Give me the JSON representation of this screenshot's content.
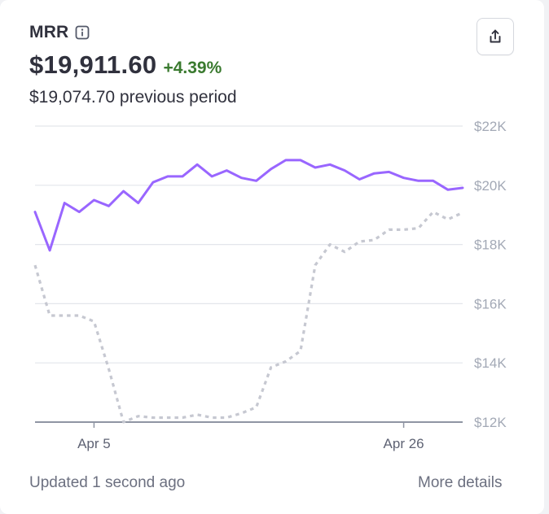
{
  "metric": {
    "title": "MRR",
    "value": "$19,911.60",
    "change": "+4.39%",
    "previous": "$19,074.70 previous period"
  },
  "footer": {
    "updated": "Updated 1 second ago",
    "details_link": "More details"
  },
  "icons": {
    "info": "info-icon",
    "export": "share-export-icon"
  },
  "colors": {
    "current_series": "#9966ff",
    "previous_series": "#c6c8d1",
    "change_positive": "#3a7a2f"
  },
  "chart_data": {
    "type": "line",
    "x_axis": {
      "start": "2024-04-01",
      "end": "2024-04-30",
      "tick_labels": [
        "Apr 5",
        "Apr 26"
      ],
      "tick_dates": [
        "2024-04-05",
        "2024-04-26"
      ]
    },
    "y_axis": {
      "ylim": [
        12000,
        22000
      ],
      "ticks": [
        12000,
        14000,
        16000,
        18000,
        20000,
        22000
      ],
      "tick_labels": [
        "$12K",
        "$14K",
        "$16K",
        "$18K",
        "$20K",
        "$22K"
      ],
      "position": "right",
      "grid": true
    },
    "x": [
      "2024-04-01",
      "2024-04-02",
      "2024-04-03",
      "2024-04-04",
      "2024-04-05",
      "2024-04-06",
      "2024-04-07",
      "2024-04-08",
      "2024-04-09",
      "2024-04-10",
      "2024-04-11",
      "2024-04-12",
      "2024-04-13",
      "2024-04-14",
      "2024-04-15",
      "2024-04-16",
      "2024-04-17",
      "2024-04-18",
      "2024-04-19",
      "2024-04-20",
      "2024-04-21",
      "2024-04-22",
      "2024-04-23",
      "2024-04-24",
      "2024-04-25",
      "2024-04-26",
      "2024-04-27",
      "2024-04-28",
      "2024-04-29",
      "2024-04-30"
    ],
    "series": [
      {
        "style": "solid",
        "values": [
          19100,
          17800,
          19400,
          19100,
          19500,
          19300,
          19800,
          19400,
          20100,
          20300,
          20300,
          20700,
          20300,
          20500,
          20250,
          20150,
          20550,
          20850,
          20850,
          20600,
          20700,
          20500,
          20200,
          20400,
          20450,
          20250,
          20150,
          20150,
          19850,
          19911.6
        ]
      },
      {
        "style": "dotted",
        "values": [
          17300,
          15600,
          15600,
          15600,
          15400,
          13800,
          12000,
          12200,
          12150,
          12150,
          12150,
          12250,
          12150,
          12150,
          12300,
          12500,
          13850,
          14050,
          14400,
          17300,
          18000,
          17750,
          18100,
          18150,
          18500,
          18500,
          18550,
          19100,
          18850,
          19074.7
        ]
      }
    ]
  }
}
